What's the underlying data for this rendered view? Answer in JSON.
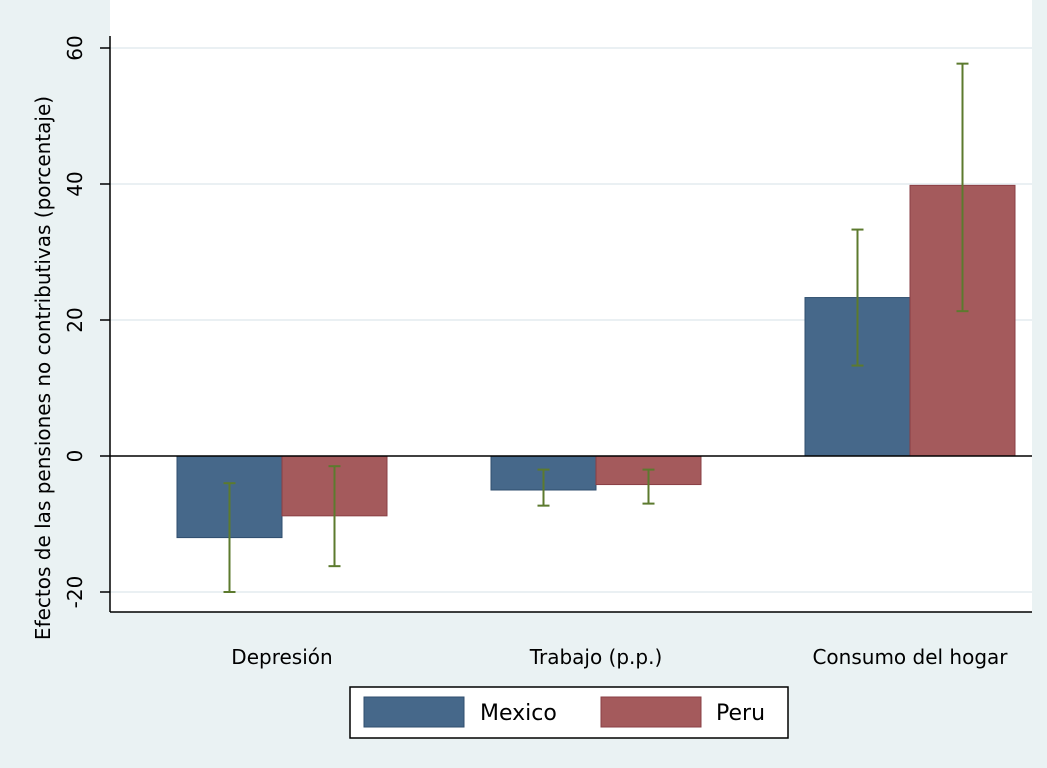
{
  "chart_data": {
    "type": "bar",
    "title": "",
    "xlabel": "",
    "ylabel": "Efectos de las pensiones no contributivas (porcentaje)",
    "categories": [
      "Depresión",
      "Trabajo (p.p.)",
      "Consumo del hogar"
    ],
    "series": [
      {
        "name": "Mexico",
        "color": "#46688a",
        "values": [
          -12,
          -5,
          23.3
        ],
        "ci_low": [
          -20,
          -7.3,
          13.3
        ],
        "ci_high": [
          -4,
          -2,
          33.3
        ]
      },
      {
        "name": "Peru",
        "color": "#a45a5c",
        "values": [
          -8.8,
          -4.2,
          39.8
        ],
        "ci_low": [
          -16.2,
          -7,
          21.3
        ],
        "ci_high": [
          -1.5,
          -2,
          57.7
        ]
      }
    ],
    "ylim": [
      -22.5,
      61
    ],
    "yticks": [
      -20,
      0,
      20,
      40,
      60
    ],
    "grid": true,
    "legend": "bottom-center",
    "errorbar_color": "#5c7a2e"
  }
}
